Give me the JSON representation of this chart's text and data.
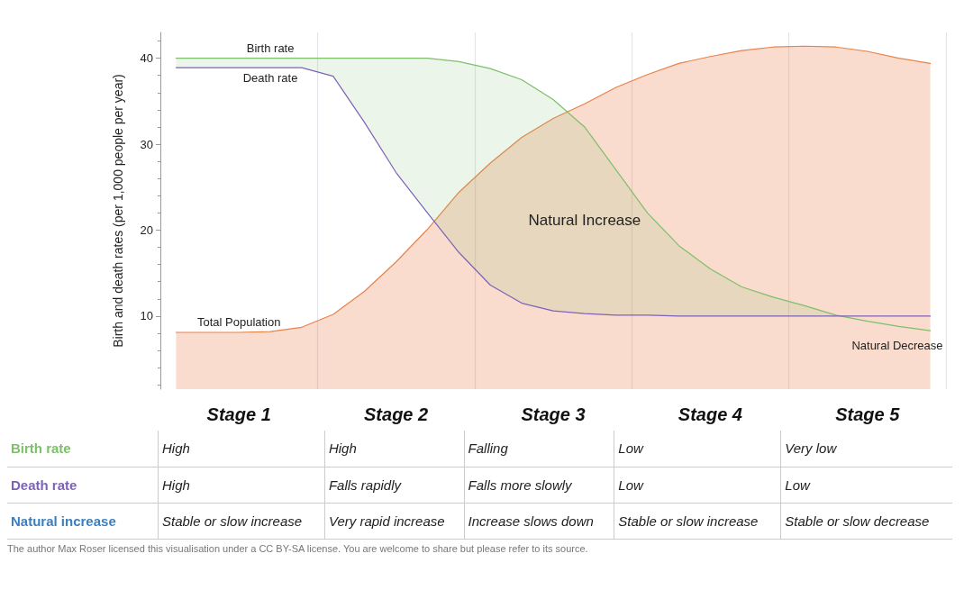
{
  "chart_data": {
    "type": "line",
    "ylabel": "Birth and death rates (per 1,000 people per year)",
    "categories": [
      null,
      null,
      "Stage 1",
      null,
      null,
      null,
      null,
      "Stage 2",
      null,
      null,
      null,
      null,
      "Stage 3",
      null,
      null,
      null,
      null,
      "Stage 4",
      null,
      null,
      null,
      null,
      "Stage 5",
      null,
      null
    ],
    "ylim": [
      1.5,
      43
    ],
    "yticks": [
      10,
      20,
      30,
      40
    ],
    "series": [
      {
        "name": "Birth rate",
        "color": "#7dbf6a",
        "values": [
          40,
          40,
          40,
          40,
          40,
          40,
          40,
          40,
          40,
          39.6,
          38.8,
          37.5,
          35.2,
          32,
          27,
          22,
          18.2,
          15.5,
          13.4,
          12.2,
          11.2,
          10.1,
          9.4,
          8.8,
          8.3
        ],
        "lower": [
          38.9,
          38.9,
          38.9,
          38.9,
          38.9,
          37.9,
          32.5,
          26.7,
          22,
          17.4,
          13.6,
          11.5,
          10.6,
          10.3,
          10.1,
          10.1,
          10,
          10,
          10,
          10,
          10,
          10,
          null,
          null,
          null
        ],
        "upper": [
          40,
          40,
          40,
          40,
          40,
          40,
          40,
          40,
          40,
          39.6,
          38.8,
          37.5,
          35.2,
          32,
          27,
          22,
          18.2,
          15.5,
          13.4,
          12.2,
          11.2,
          10.1,
          null,
          null,
          null
        ]
      },
      {
        "name": "Death rate",
        "color": "#7c62b8",
        "values": [
          38.9,
          38.9,
          38.9,
          38.9,
          38.9,
          37.9,
          32.5,
          26.7,
          22,
          17.4,
          13.6,
          11.5,
          10.6,
          10.3,
          10.1,
          10.1,
          10,
          10,
          10,
          10,
          10,
          10,
          10,
          10,
          10
        ]
      },
      {
        "name": "Total Population",
        "type": "area",
        "color": "#e8824a",
        "values": [
          8.1,
          8.1,
          8.1,
          8.2,
          8.7,
          10.2,
          12.9,
          16.3,
          20.1,
          24.4,
          27.8,
          30.8,
          33,
          34.7,
          36.6,
          38.1,
          39.4,
          40.2,
          40.9,
          41.3,
          41.4,
          41.3,
          40.8,
          40,
          39.4
        ]
      }
    ],
    "annotations": [
      "Natural Increase",
      "Natural Decrease",
      "Birth rate",
      "High",
      "High",
      "Falling",
      "Low",
      "Very low",
      "Death rate",
      "High",
      "Falls rapidly",
      "Falls more slowly",
      "Low",
      "Low",
      "Natural increase",
      "Stable or slow increase",
      "Very rapid increase",
      "Increase slows down",
      "Stable or slow increase",
      "Stable or slow decrease",
      "The author Max Roser licensed this visualisation under a CC BY-SA license. You are welcome to share but please refer to its source."
    ],
    "grid": "x",
    "legend": false,
    "marker": "none",
    "line_style": "solid"
  }
}
